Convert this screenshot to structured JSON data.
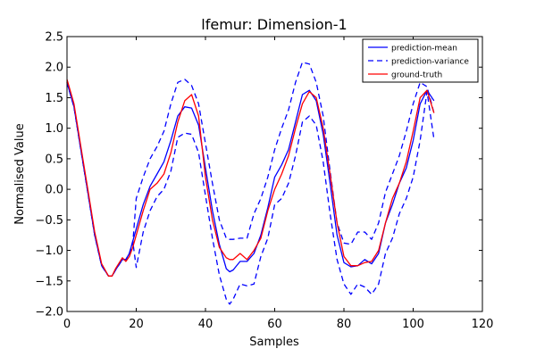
{
  "colors": {
    "prediction_mean": "#0000ff",
    "prediction_variance": "#0000ff",
    "ground_truth": "#ff0000",
    "background": "#ffffff"
  },
  "chart_data": {
    "type": "line",
    "title": "lfemur: Dimension-1",
    "xlabel": "Samples",
    "ylabel": "Normalised Value",
    "xlim": [
      0,
      120
    ],
    "ylim": [
      -2.0,
      2.5
    ],
    "xticks": [
      0,
      20,
      40,
      60,
      80,
      100,
      120
    ],
    "yticks": [
      -2.0,
      -1.5,
      -1.0,
      -0.5,
      0.0,
      0.5,
      1.0,
      1.5,
      2.0,
      2.5
    ],
    "xtick_labels": [
      "0",
      "20",
      "40",
      "60",
      "80",
      "100",
      "120"
    ],
    "ytick_labels": [
      "−2.0",
      "−1.5",
      "−1.0",
      "−0.5",
      "0.0",
      "0.5",
      "1.0",
      "1.5",
      "2.0",
      "2.5"
    ],
    "grid": false,
    "legend_position": "top-right",
    "series": [
      {
        "name": "prediction-mean",
        "style": "solid",
        "color": "#0000ff",
        "x": [
          0,
          2,
          4,
          6,
          8,
          10,
          12,
          13,
          14,
          16,
          17,
          18,
          19,
          20,
          22,
          24,
          26,
          28,
          30,
          32,
          34,
          36,
          38,
          40,
          42,
          44,
          46,
          47,
          48,
          50,
          52,
          54,
          56,
          58,
          60,
          62,
          64,
          66,
          68,
          70,
          72,
          74,
          76,
          78,
          80,
          82,
          84,
          86,
          88,
          90,
          92,
          94,
          96,
          98,
          100,
          102,
          104,
          106
        ],
        "y": [
          1.75,
          1.35,
          0.65,
          -0.05,
          -0.75,
          -1.25,
          -1.42,
          -1.42,
          -1.32,
          -1.15,
          -1.15,
          -1.05,
          -0.85,
          -0.65,
          -0.25,
          0.05,
          0.25,
          0.45,
          0.8,
          1.2,
          1.35,
          1.33,
          1.05,
          0.35,
          -0.35,
          -0.9,
          -1.3,
          -1.35,
          -1.32,
          -1.18,
          -1.18,
          -1.05,
          -0.75,
          -0.3,
          0.2,
          0.4,
          0.65,
          1.1,
          1.55,
          1.62,
          1.45,
          0.9,
          0.1,
          -0.75,
          -1.2,
          -1.27,
          -1.25,
          -1.15,
          -1.22,
          -1.05,
          -0.55,
          -0.25,
          0.1,
          0.35,
          0.8,
          1.4,
          1.62,
          1.45
        ]
      },
      {
        "name": "prediction-variance",
        "style": "dashed",
        "color": "#0000ff",
        "x": [
          0,
          2,
          4,
          6,
          8,
          10,
          12,
          13,
          14,
          16,
          17,
          18,
          19,
          20,
          22,
          24,
          26,
          28,
          30,
          32,
          34,
          36,
          38,
          40,
          42,
          44,
          46,
          47,
          48,
          50,
          52,
          54,
          56,
          58,
          60,
          62,
          64,
          66,
          68,
          70,
          72,
          74,
          76,
          78,
          80,
          82,
          84,
          86,
          88,
          90,
          92,
          94,
          96,
          98,
          100,
          102,
          104,
          106
        ],
        "y": [
          1.75,
          1.35,
          0.65,
          -0.05,
          -0.75,
          -1.25,
          -1.42,
          -1.42,
          -1.32,
          -1.15,
          -1.15,
          -1.05,
          -0.9,
          -0.15,
          0.2,
          0.5,
          0.7,
          0.95,
          1.4,
          1.75,
          1.8,
          1.7,
          1.4,
          0.75,
          0.1,
          -0.5,
          -0.8,
          -0.82,
          -0.82,
          -0.8,
          -0.8,
          -0.4,
          -0.15,
          0.2,
          0.65,
          1.0,
          1.3,
          1.75,
          2.08,
          2.05,
          1.75,
          1.2,
          0.3,
          -0.55,
          -0.88,
          -0.9,
          -0.7,
          -0.7,
          -0.82,
          -0.55,
          -0.05,
          0.25,
          0.55,
          0.95,
          1.4,
          1.75,
          1.68,
          1.25
        ]
      },
      {
        "name": "prediction-variance",
        "style": "dashed",
        "color": "#0000ff",
        "x": [
          0,
          2,
          4,
          6,
          8,
          10,
          12,
          13,
          14,
          16,
          17,
          18,
          19,
          20,
          22,
          24,
          26,
          28,
          30,
          32,
          34,
          36,
          38,
          40,
          42,
          44,
          46,
          47,
          48,
          50,
          52,
          54,
          56,
          58,
          60,
          62,
          64,
          66,
          68,
          70,
          72,
          74,
          76,
          78,
          80,
          82,
          84,
          86,
          88,
          90,
          92,
          94,
          96,
          98,
          100,
          102,
          104,
          106
        ],
        "y": [
          1.75,
          1.35,
          0.65,
          -0.05,
          -0.75,
          -1.25,
          -1.42,
          -1.42,
          -1.32,
          -1.15,
          -1.15,
          -1.05,
          -0.85,
          -1.28,
          -0.7,
          -0.35,
          -0.12,
          0.0,
          0.3,
          0.85,
          0.92,
          0.9,
          0.6,
          -0.1,
          -0.8,
          -1.4,
          -1.8,
          -1.88,
          -1.8,
          -1.55,
          -1.58,
          -1.55,
          -1.1,
          -0.8,
          -0.25,
          -0.15,
          0.1,
          0.55,
          1.1,
          1.2,
          1.05,
          0.45,
          -0.4,
          -1.15,
          -1.55,
          -1.72,
          -1.55,
          -1.6,
          -1.72,
          -1.55,
          -1.05,
          -0.8,
          -0.4,
          -0.15,
          0.2,
          0.8,
          1.6,
          0.82
        ]
      },
      {
        "name": "ground-truth",
        "style": "solid",
        "color": "#ff0000",
        "x": [
          0,
          2,
          4,
          6,
          8,
          10,
          12,
          13,
          14,
          16,
          17,
          18,
          19,
          20,
          22,
          24,
          26,
          28,
          30,
          32,
          34,
          36,
          38,
          40,
          42,
          44,
          46,
          47,
          48,
          50,
          52,
          54,
          56,
          58,
          60,
          62,
          64,
          66,
          68,
          70,
          72,
          74,
          76,
          78,
          80,
          82,
          84,
          86,
          88,
          90,
          92,
          94,
          96,
          98,
          100,
          102,
          104,
          106
        ],
        "y": [
          1.8,
          1.4,
          0.7,
          0.0,
          -0.7,
          -1.22,
          -1.42,
          -1.42,
          -1.3,
          -1.12,
          -1.18,
          -1.1,
          -0.95,
          -0.75,
          -0.35,
          0.0,
          0.1,
          0.25,
          0.6,
          1.1,
          1.45,
          1.55,
          1.2,
          0.2,
          -0.5,
          -0.95,
          -1.12,
          -1.15,
          -1.15,
          -1.05,
          -1.15,
          -1.0,
          -0.8,
          -0.35,
          0.0,
          0.25,
          0.55,
          1.0,
          1.4,
          1.6,
          1.5,
          1.0,
          0.25,
          -0.55,
          -1.1,
          -1.25,
          -1.25,
          -1.2,
          -1.18,
          -1.0,
          -0.55,
          -0.15,
          0.1,
          0.45,
          0.95,
          1.5,
          1.62,
          1.25
        ]
      }
    ],
    "legend": [
      {
        "label": "prediction-mean",
        "style": "solid",
        "color": "#0000ff"
      },
      {
        "label": "prediction-variance",
        "style": "dashed",
        "color": "#0000ff"
      },
      {
        "label": "ground-truth",
        "style": "solid",
        "color": "#ff0000"
      }
    ]
  }
}
